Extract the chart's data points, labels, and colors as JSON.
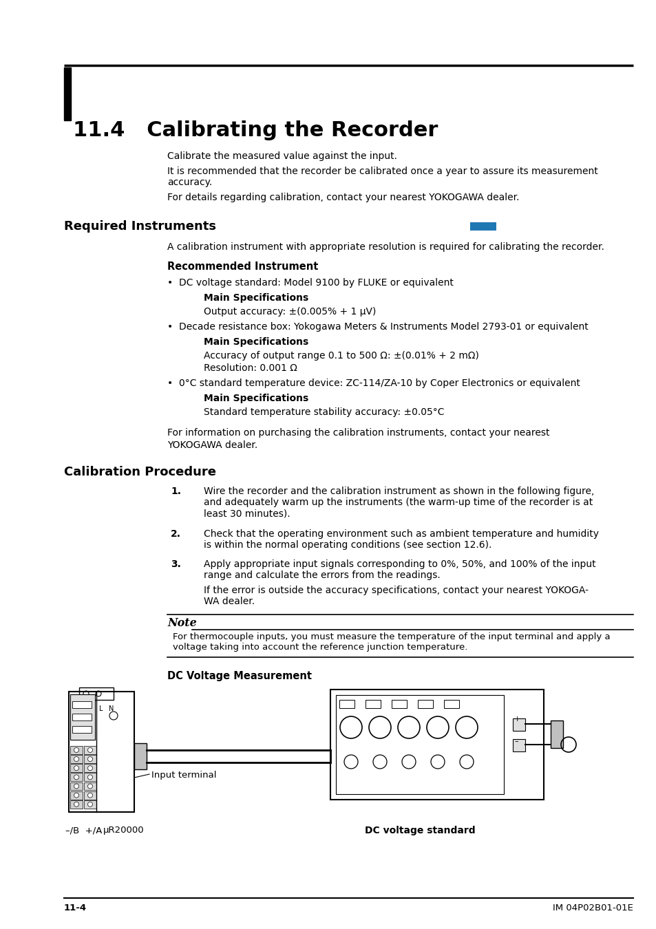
{
  "title": "11.4   Calibrating the Recorder",
  "intro_texts": [
    "Calibrate the measured value against the input.",
    "It is recommended that the recorder be calibrated once a year to assure its measurement\naccuracy.",
    "For details regarding calibration, contact your nearest YOKOGAWA dealer."
  ],
  "section1_title": "Required Instruments",
  "section1_body_intro": "A calibration instrument with appropriate resolution is required for calibrating the recorder.",
  "rec_inst_title": "Recommended Instrument",
  "bullet1": "DC voltage standard: Model 9100 by FLUKE or equivalent",
  "main_spec1_title": "Main Specifications",
  "main_spec1_body": "Output accuracy: ±(0.005% + 1 μV)",
  "bullet2": "Decade resistance box: Yokogawa Meters & Instruments Model 2793-01 or equivalent",
  "main_spec2_title": "Main Specifications",
  "main_spec2_body1": "Accuracy of output range 0.1 to 500 Ω: ±(0.01% + 2 mΩ)",
  "main_spec2_body2": "Resolution: 0.001 Ω",
  "bullet3": "0°C standard temperature device: ZC-114/ZA-10 by Coper Electronics or equivalent",
  "main_spec3_title": "Main Specifications",
  "main_spec3_body": "Standard temperature stability accuracy: ±0.05°C",
  "section1_footer1": "For information on purchasing the calibration instruments, contact your nearest",
  "section1_footer2": "YOKOGAWA dealer.",
  "section2_title": "Calibration Procedure",
  "step1": "Wire the recorder and the calibration instrument as shown in the following figure,\nand adequately warm up the instruments (the warm-up time of the recorder is at\nleast 30 minutes).",
  "step2": "Check that the operating environment such as ambient temperature and humidity\nis within the normal operating conditions (see section 12.6).",
  "step3a": "Apply appropriate input signals corresponding to 0%, 50%, and 100% of the input\nrange and calculate the errors from the readings.",
  "step3b": "If the error is outside the accuracy specifications, contact your nearest YOKOGA-\nWA dealer.",
  "note_title": "Note",
  "note_body": "For thermocouple inputs, you must measure the temperature of the input terminal and apply a\nvoltage taking into account the reference junction temperature.",
  "dc_voltage_title": "DC Voltage Measurement",
  "label_input_terminal": "Input terminal",
  "label_ur20000": "μR20000",
  "label_minus_b_plus_a": "–/B  +/A",
  "label_dc_voltage_standard": "DC voltage standard",
  "footer_left": "11-4",
  "footer_right": "IM 04P02B01-01E",
  "bg_color": "#ffffff",
  "text_color": "#000000"
}
